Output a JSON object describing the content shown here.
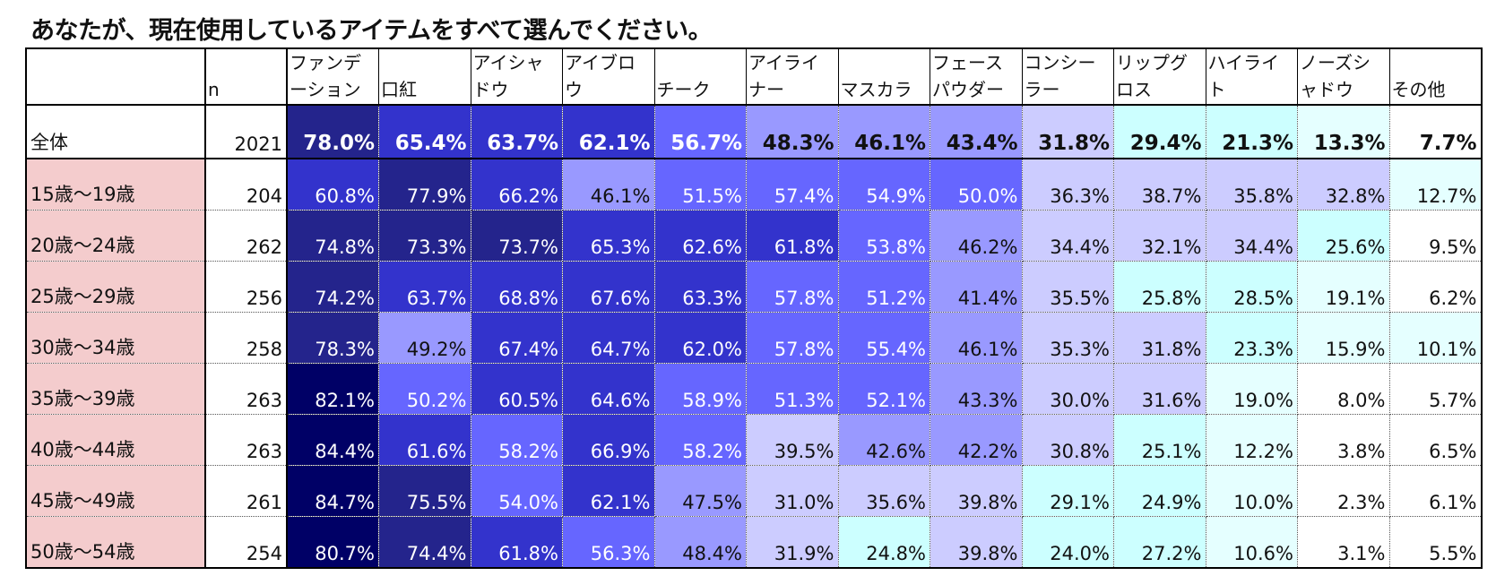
{
  "chart_data": {
    "type": "table",
    "title": "あなたが、現在使用しているアイテムをすべて選んでください。",
    "row_header": "",
    "n_header": "n",
    "columns": [
      "ファンデーション",
      "口紅",
      "アイシャドウ",
      "アイブロウ",
      "チーク",
      "アイライナー",
      "マスカラ",
      "フェースパウダー",
      "コンシーラー",
      "リップグロス",
      "ハイライト",
      "ノーズシャドウ",
      "その他"
    ],
    "rows": [
      {
        "label": "全体",
        "n": 2021,
        "values": [
          78.0,
          65.4,
          63.7,
          62.1,
          56.7,
          48.3,
          46.1,
          43.4,
          31.8,
          29.4,
          21.3,
          13.3,
          7.7
        ]
      },
      {
        "label": "15歳～19歳",
        "n": 204,
        "values": [
          60.8,
          77.9,
          66.2,
          46.1,
          51.5,
          57.4,
          54.9,
          50.0,
          36.3,
          38.7,
          35.8,
          32.8,
          12.7
        ]
      },
      {
        "label": "20歳～24歳",
        "n": 262,
        "values": [
          74.8,
          73.3,
          73.7,
          65.3,
          62.6,
          61.8,
          53.8,
          46.2,
          34.4,
          32.1,
          34.4,
          25.6,
          9.5
        ]
      },
      {
        "label": "25歳～29歳",
        "n": 256,
        "values": [
          74.2,
          63.7,
          68.8,
          67.6,
          63.3,
          57.8,
          51.2,
          41.4,
          35.5,
          25.8,
          28.5,
          19.1,
          6.2
        ]
      },
      {
        "label": "30歳～34歳",
        "n": 258,
        "values": [
          78.3,
          49.2,
          67.4,
          64.7,
          62.0,
          57.8,
          55.4,
          46.1,
          35.3,
          31.8,
          23.3,
          15.9,
          10.1
        ]
      },
      {
        "label": "35歳～39歳",
        "n": 263,
        "values": [
          82.1,
          50.2,
          60.5,
          64.6,
          58.9,
          51.3,
          52.1,
          43.3,
          30.0,
          31.6,
          19.0,
          8.0,
          5.7
        ]
      },
      {
        "label": "40歳～44歳",
        "n": 263,
        "values": [
          84.4,
          61.6,
          58.2,
          66.9,
          58.2,
          39.5,
          42.6,
          42.2,
          30.8,
          25.1,
          12.2,
          3.8,
          6.5
        ]
      },
      {
        "label": "45歳～49歳",
        "n": 261,
        "values": [
          84.7,
          75.5,
          54.0,
          62.1,
          47.5,
          31.0,
          35.6,
          39.8,
          29.1,
          24.9,
          10.0,
          2.3,
          6.1
        ]
      },
      {
        "label": "50歳～54歳",
        "n": 254,
        "values": [
          80.7,
          74.4,
          61.8,
          56.3,
          48.4,
          31.9,
          24.8,
          39.8,
          24.0,
          27.2,
          10.6,
          3.1,
          5.5
        ]
      }
    ],
    "color_scale": {
      "stops": [
        {
          "min": 80,
          "bg": "#000066",
          "fg": "#ffffff"
        },
        {
          "min": 70,
          "bg": "#24248c",
          "fg": "#ffffff"
        },
        {
          "min": 60,
          "bg": "#3333cc",
          "fg": "#ffffff"
        },
        {
          "min": 50,
          "bg": "#6666ff",
          "fg": "#ffffff"
        },
        {
          "min": 40,
          "bg": "#9999ff",
          "fg": "#111111"
        },
        {
          "min": 30,
          "bg": "#ccccff",
          "fg": "#111111"
        },
        {
          "min": 20,
          "bg": "#ccffff",
          "fg": "#111111"
        },
        {
          "min": 10,
          "bg": "#e5ffff",
          "fg": "#111111"
        },
        {
          "min": 0,
          "bg": "#ffffff",
          "fg": "#111111"
        }
      ]
    },
    "row_label_color": "#f4cccd"
  }
}
